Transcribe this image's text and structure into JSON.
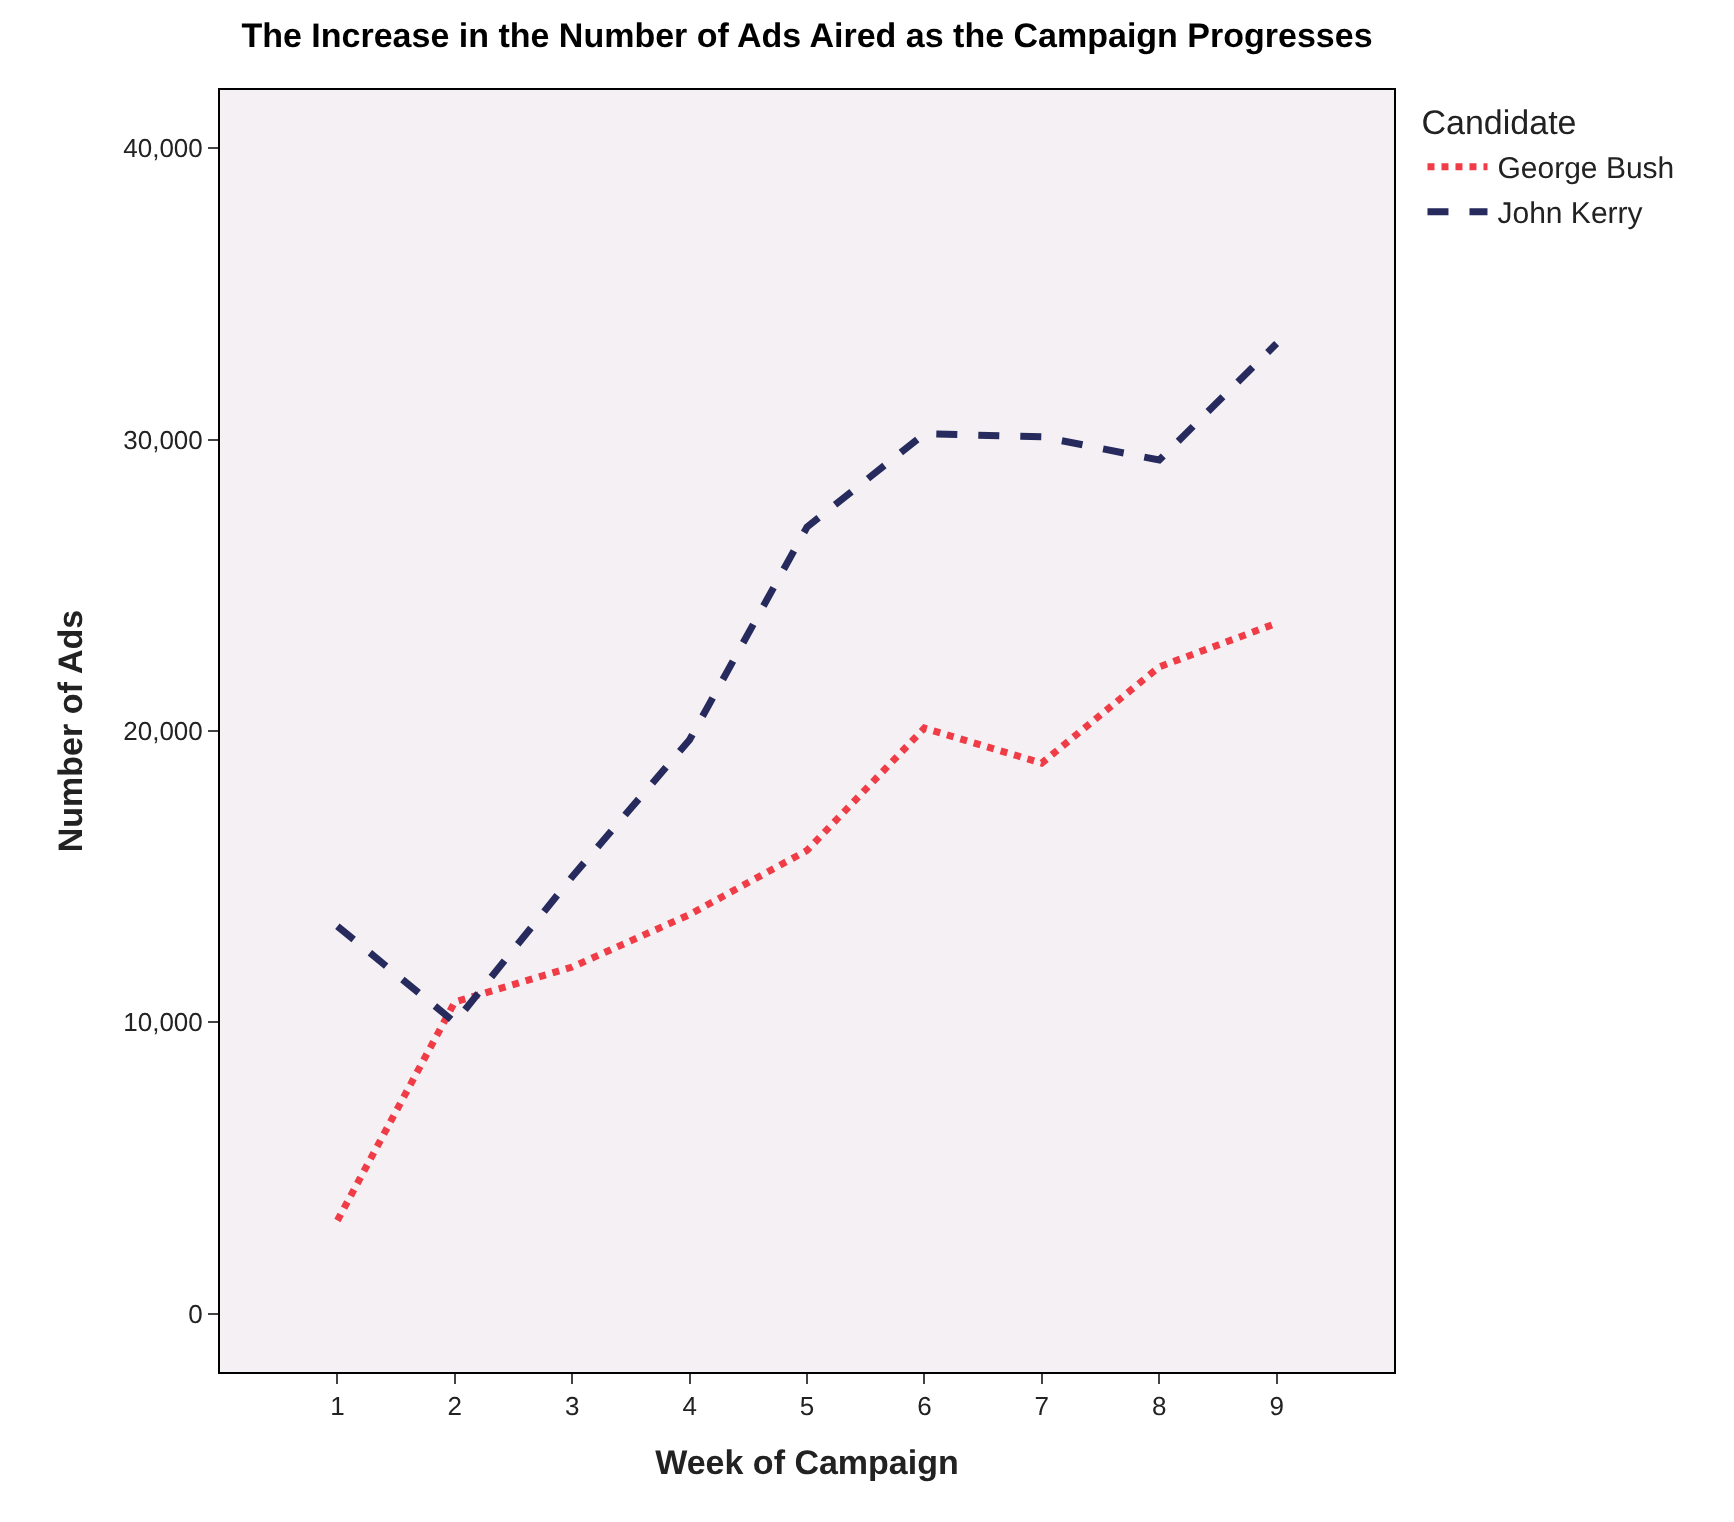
{
  "chart_data": {
    "type": "line",
    "title": "The Increase in the Number of Ads Aired as the Campaign Progresses",
    "xlabel": "Week of Campaign",
    "ylabel": "Number of Ads",
    "legend_title": "Candidate",
    "x": [
      1,
      2,
      3,
      4,
      5,
      6,
      7,
      8,
      9
    ],
    "series": [
      {
        "name": "George Bush",
        "color": "#f03c46",
        "line_style": "dotted",
        "values": [
          3200,
          10700,
          11900,
          13700,
          15900,
          20100,
          18900,
          22200,
          23700
        ]
      },
      {
        "name": "John Kerry",
        "color": "#262a5c",
        "line_style": "dashed",
        "values": [
          13300,
          10000,
          15000,
          19700,
          27000,
          30200,
          30100,
          29300,
          33300
        ]
      }
    ],
    "xlim": [
      0,
      10
    ],
    "xticks": [
      1,
      2,
      3,
      4,
      5,
      6,
      7,
      8,
      9
    ],
    "ylim": [
      -2000,
      42000
    ],
    "yticks": [
      {
        "value": 0,
        "label": "0"
      },
      {
        "value": 10000,
        "label": "10,000"
      },
      {
        "value": 20000,
        "label": "20,000"
      },
      {
        "value": 30000,
        "label": "30,000"
      },
      {
        "value": 40000,
        "label": "40,000"
      }
    ],
    "grid": false,
    "legend": "right",
    "marker": "none"
  }
}
